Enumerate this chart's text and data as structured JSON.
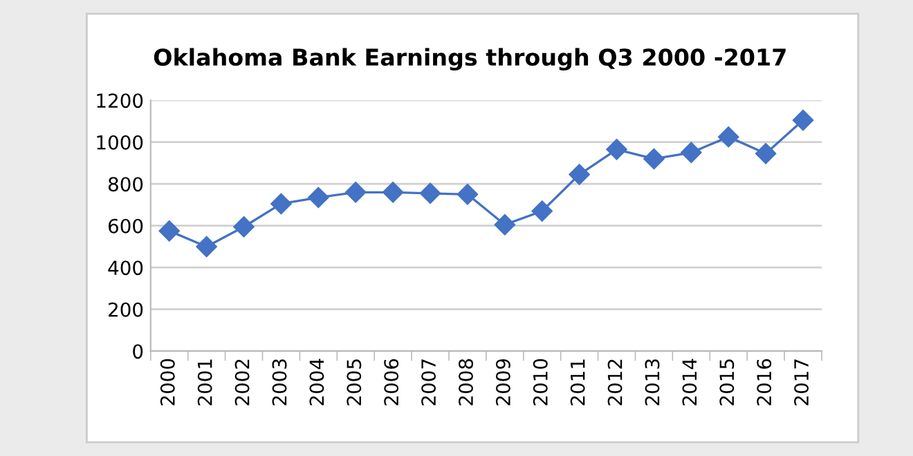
{
  "chart_data": {
    "type": "line",
    "title": "Oklahoma Bank Earnings through Q3 2000 -2017",
    "categories": [
      "2000",
      "2001",
      "2002",
      "2003",
      "2004",
      "2005",
      "2006",
      "2007",
      "2008",
      "2009",
      "2010",
      "2011",
      "2012",
      "2013",
      "2014",
      "2015",
      "2016",
      "2017"
    ],
    "series": [
      {
        "color": "#4472c4",
        "values": [
          575,
          500,
          595,
          705,
          735,
          760,
          760,
          755,
          750,
          605,
          670,
          845,
          965,
          920,
          950,
          1025,
          945,
          1105
        ]
      }
    ],
    "ylim": [
      0,
      1200
    ],
    "yticks": [
      0,
      200,
      400,
      600,
      800,
      1000,
      1200
    ],
    "grid": "y",
    "marker": "diamond",
    "line_style": "solid"
  }
}
